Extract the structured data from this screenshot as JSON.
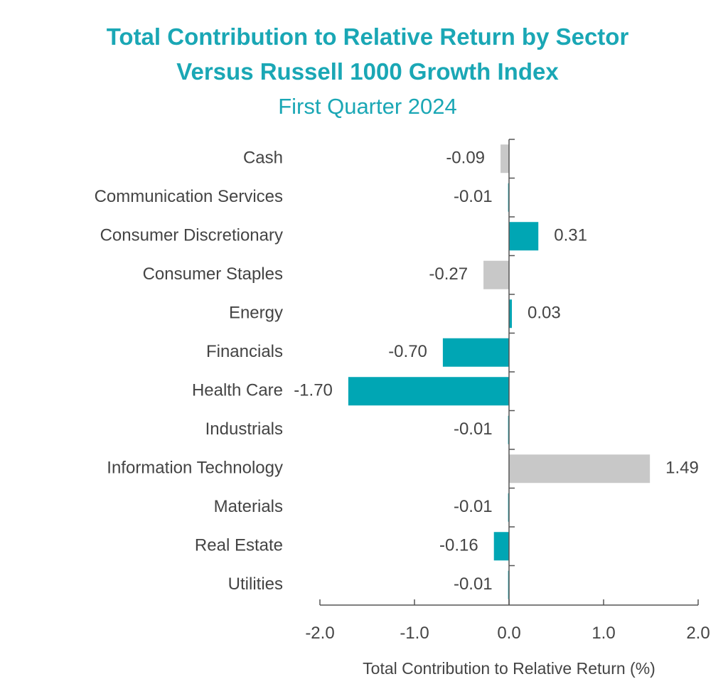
{
  "chart_data": {
    "type": "bar",
    "orientation": "horizontal",
    "title": "Total Contribution to Relative Return by Sector",
    "title_line2": "Versus Russell 1000 Growth Index",
    "subtitle": "First Quarter 2024",
    "xlabel": "Total Contribution to Relative Return (%)",
    "xlim": [
      -2.0,
      2.0
    ],
    "xticks": [
      "-2.0",
      "-1.0",
      "0.0",
      "1.0",
      "2.0"
    ],
    "colors": {
      "teal": "#00a6b4",
      "gray": "#c8c8c8"
    },
    "categories": [
      "Cash",
      "Communication Services",
      "Consumer Discretionary",
      "Consumer Staples",
      "Energy",
      "Financials",
      "Health Care",
      "Industrials",
      "Information Technology",
      "Materials",
      "Real Estate",
      "Utilities"
    ],
    "values": [
      -0.09,
      -0.01,
      0.31,
      -0.27,
      0.03,
      -0.7,
      -1.7,
      -0.01,
      1.49,
      -0.01,
      -0.16,
      -0.01
    ],
    "value_labels": [
      "-0.09",
      "-0.01",
      "0.31",
      "-0.27",
      "0.03",
      "-0.70",
      "-1.70",
      "-0.01",
      "1.49",
      "-0.01",
      "-0.16",
      "-0.01"
    ],
    "bar_colors": [
      "gray",
      "teal",
      "teal",
      "gray",
      "teal",
      "teal",
      "teal",
      "teal",
      "gray",
      "teal",
      "teal",
      "teal"
    ]
  }
}
